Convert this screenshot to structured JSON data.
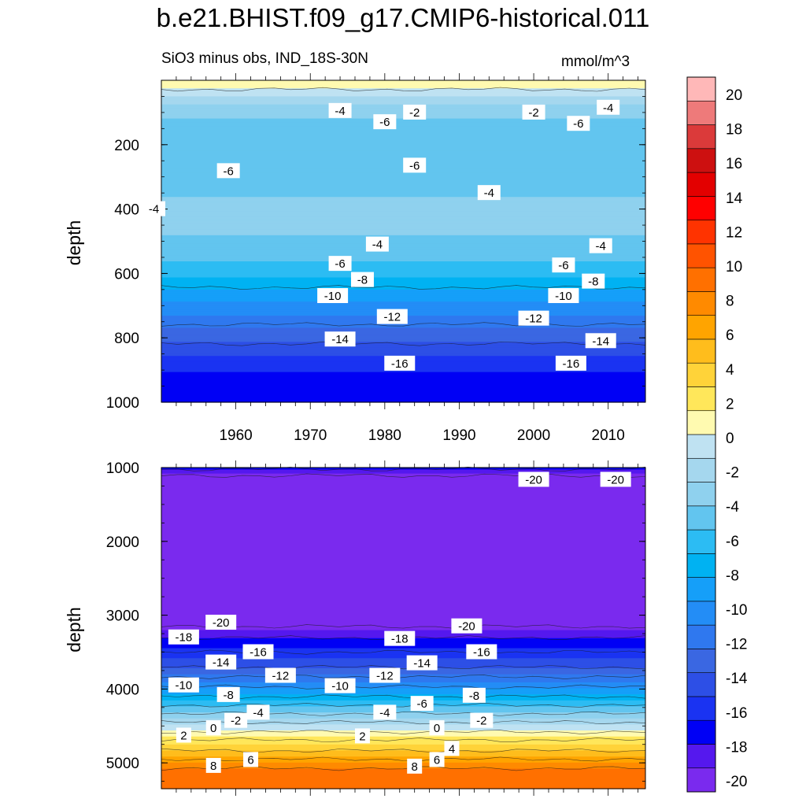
{
  "title": "b.e21.BHIST.f09_g17.CMIP6-historical.011",
  "subtitle_left": "SiO3 minus obs, IND_18S-30N",
  "subtitle_right": "mmol/m^3",
  "colorbar": {
    "levels": [
      -20,
      -18,
      -16,
      -14,
      -12,
      -10,
      -8,
      -6,
      -4,
      -2,
      0,
      2,
      4,
      6,
      8,
      10,
      12,
      14,
      16,
      18,
      20
    ],
    "tick_labels": [
      "-20",
      "-18",
      "-16",
      "-14",
      "-12",
      "-10",
      "-8",
      "-6",
      "-4",
      "-2",
      "0",
      "2",
      "4",
      "6",
      "8",
      "10",
      "12",
      "14",
      "16",
      "18",
      "20"
    ],
    "colors": [
      "#7a2aee",
      "#5518ee",
      "#0000f5",
      "#1a33f2",
      "#2d4fe6",
      "#3a67e2",
      "#2f78ef",
      "#238df6",
      "#159ff9",
      "#00b2f2",
      "#2cbcf3",
      "#62c5ef",
      "#8fd1ee",
      "#a5d7ee",
      "#bfe2f2",
      "#fffab0",
      "#ffe75a",
      "#ffd339",
      "#ffbd1c",
      "#ffa400",
      "#ff8a00",
      "#ff7000",
      "#ff5300",
      "#ff3300",
      "#ff0000",
      "#e30000",
      "#cd1010",
      "#db3a3a",
      "#ee7a7a",
      "#ffb8b8"
    ]
  },
  "chart_data": [
    {
      "type": "heatmap",
      "panel": "upper",
      "xlabel": "",
      "ylabel": "depth",
      "x_ticks": [
        1960,
        1970,
        1980,
        1990,
        2000,
        2010
      ],
      "xlim": [
        1950,
        2015
      ],
      "y_ticks": [
        200,
        400,
        600,
        800,
        1000
      ],
      "ylim": [
        0,
        1000
      ],
      "y_inverted": true,
      "depth_profile": [
        {
          "depth": 15,
          "value": 1
        },
        {
          "depth": 40,
          "value": -1
        },
        {
          "depth": 80,
          "value": -3
        },
        {
          "depth": 150,
          "value": -5
        },
        {
          "depth": 250,
          "value": -5.5
        },
        {
          "depth": 330,
          "value": -4.5
        },
        {
          "depth": 420,
          "value": -3.5
        },
        {
          "depth": 520,
          "value": -4.5
        },
        {
          "depth": 600,
          "value": -6.5
        },
        {
          "depth": 700,
          "value": -10
        },
        {
          "depth": 800,
          "value": -13.5
        },
        {
          "depth": 900,
          "value": -16.5
        },
        {
          "depth": 1000,
          "value": -17.5
        }
      ],
      "contour_labels": [
        {
          "year": 1974,
          "depth": 95,
          "text": "-4"
        },
        {
          "year": 1984,
          "depth": 100,
          "text": "-2"
        },
        {
          "year": 2000,
          "depth": 100,
          "text": "-2"
        },
        {
          "year": 2010,
          "depth": 85,
          "text": "-4"
        },
        {
          "year": 1980,
          "depth": 130,
          "text": "-6"
        },
        {
          "year": 2006,
          "depth": 135,
          "text": "-6"
        },
        {
          "year": 1949,
          "depth": 400,
          "text": "-4"
        },
        {
          "year": 1959,
          "depth": 282,
          "text": "-6"
        },
        {
          "year": 1984,
          "depth": 265,
          "text": "-6"
        },
        {
          "year": 1994,
          "depth": 350,
          "text": "-4"
        },
        {
          "year": 1979,
          "depth": 510,
          "text": "-4"
        },
        {
          "year": 2009,
          "depth": 515,
          "text": "-4"
        },
        {
          "year": 1974,
          "depth": 570,
          "text": "-6"
        },
        {
          "year": 2004,
          "depth": 575,
          "text": "-6"
        },
        {
          "year": 1977,
          "depth": 620,
          "text": "-8"
        },
        {
          "year": 2008,
          "depth": 625,
          "text": "-8"
        },
        {
          "year": 1973,
          "depth": 670,
          "text": "-10"
        },
        {
          "year": 2004,
          "depth": 670,
          "text": "-10"
        },
        {
          "year": 1981,
          "depth": 735,
          "text": "-12"
        },
        {
          "year": 2000,
          "depth": 740,
          "text": "-12"
        },
        {
          "year": 1974,
          "depth": 805,
          "text": "-14"
        },
        {
          "year": 2009,
          "depth": 810,
          "text": "-14"
        },
        {
          "year": 1982,
          "depth": 880,
          "text": "-16"
        },
        {
          "year": 2005,
          "depth": 880,
          "text": "-16"
        }
      ]
    },
    {
      "type": "heatmap",
      "panel": "lower",
      "xlabel": "",
      "ylabel": "depth",
      "x_ticks": [
        1960,
        1970,
        1980,
        1990,
        2000,
        2010
      ],
      "xlim": [
        1950,
        2015
      ],
      "y_ticks": [
        1000,
        2000,
        3000,
        4000,
        5000
      ],
      "ylim": [
        1000,
        5350
      ],
      "y_inverted": true,
      "depth_profile": [
        {
          "depth": 1000,
          "value": -17.5
        },
        {
          "depth": 1150,
          "value": -21
        },
        {
          "depth": 3000,
          "value": -21
        },
        {
          "depth": 3150,
          "value": -20
        },
        {
          "depth": 3300,
          "value": -18
        },
        {
          "depth": 3500,
          "value": -16
        },
        {
          "depth": 3700,
          "value": -14
        },
        {
          "depth": 3900,
          "value": -11
        },
        {
          "depth": 4100,
          "value": -8
        },
        {
          "depth": 4300,
          "value": -4.5
        },
        {
          "depth": 4450,
          "value": -2
        },
        {
          "depth": 4550,
          "value": -0.5
        },
        {
          "depth": 4650,
          "value": 1.5
        },
        {
          "depth": 4800,
          "value": 3.5
        },
        {
          "depth": 4950,
          "value": 6
        },
        {
          "depth": 5100,
          "value": 8.5
        },
        {
          "depth": 5350,
          "value": 9
        }
      ],
      "contour_labels": [
        {
          "year": 2000,
          "depth": 1165,
          "text": "-20"
        },
        {
          "year": 2011,
          "depth": 1165,
          "text": "-20"
        },
        {
          "year": 1958,
          "depth": 3100,
          "text": "-20"
        },
        {
          "year": 1991,
          "depth": 3150,
          "text": "-20"
        },
        {
          "year": 1953,
          "depth": 3300,
          "text": "-18"
        },
        {
          "year": 1982,
          "depth": 3320,
          "text": "-18"
        },
        {
          "year": 1963,
          "depth": 3500,
          "text": "-16"
        },
        {
          "year": 1993,
          "depth": 3500,
          "text": "-16"
        },
        {
          "year": 1958,
          "depth": 3640,
          "text": "-14"
        },
        {
          "year": 1985,
          "depth": 3650,
          "text": "-14"
        },
        {
          "year": 1966,
          "depth": 3820,
          "text": "-12"
        },
        {
          "year": 1980,
          "depth": 3820,
          "text": "-12"
        },
        {
          "year": 1953,
          "depth": 3950,
          "text": "-10"
        },
        {
          "year": 1974,
          "depth": 3960,
          "text": "-10"
        },
        {
          "year": 1959,
          "depth": 4080,
          "text": "-8"
        },
        {
          "year": 1992,
          "depth": 4090,
          "text": "-8"
        },
        {
          "year": 1985,
          "depth": 4200,
          "text": "-6"
        },
        {
          "year": 1963,
          "depth": 4320,
          "text": "-4"
        },
        {
          "year": 1980,
          "depth": 4320,
          "text": "-4"
        },
        {
          "year": 1960,
          "depth": 4430,
          "text": "-2"
        },
        {
          "year": 1993,
          "depth": 4430,
          "text": "-2"
        },
        {
          "year": 1957,
          "depth": 4530,
          "text": "0"
        },
        {
          "year": 1987,
          "depth": 4530,
          "text": "0"
        },
        {
          "year": 1953,
          "depth": 4630,
          "text": "2"
        },
        {
          "year": 1977,
          "depth": 4640,
          "text": "2"
        },
        {
          "year": 1989,
          "depth": 4810,
          "text": "4"
        },
        {
          "year": 1962,
          "depth": 4960,
          "text": "6"
        },
        {
          "year": 1987,
          "depth": 4960,
          "text": "6"
        },
        {
          "year": 1957,
          "depth": 5040,
          "text": "8"
        },
        {
          "year": 1984,
          "depth": 5050,
          "text": "8"
        }
      ]
    }
  ]
}
